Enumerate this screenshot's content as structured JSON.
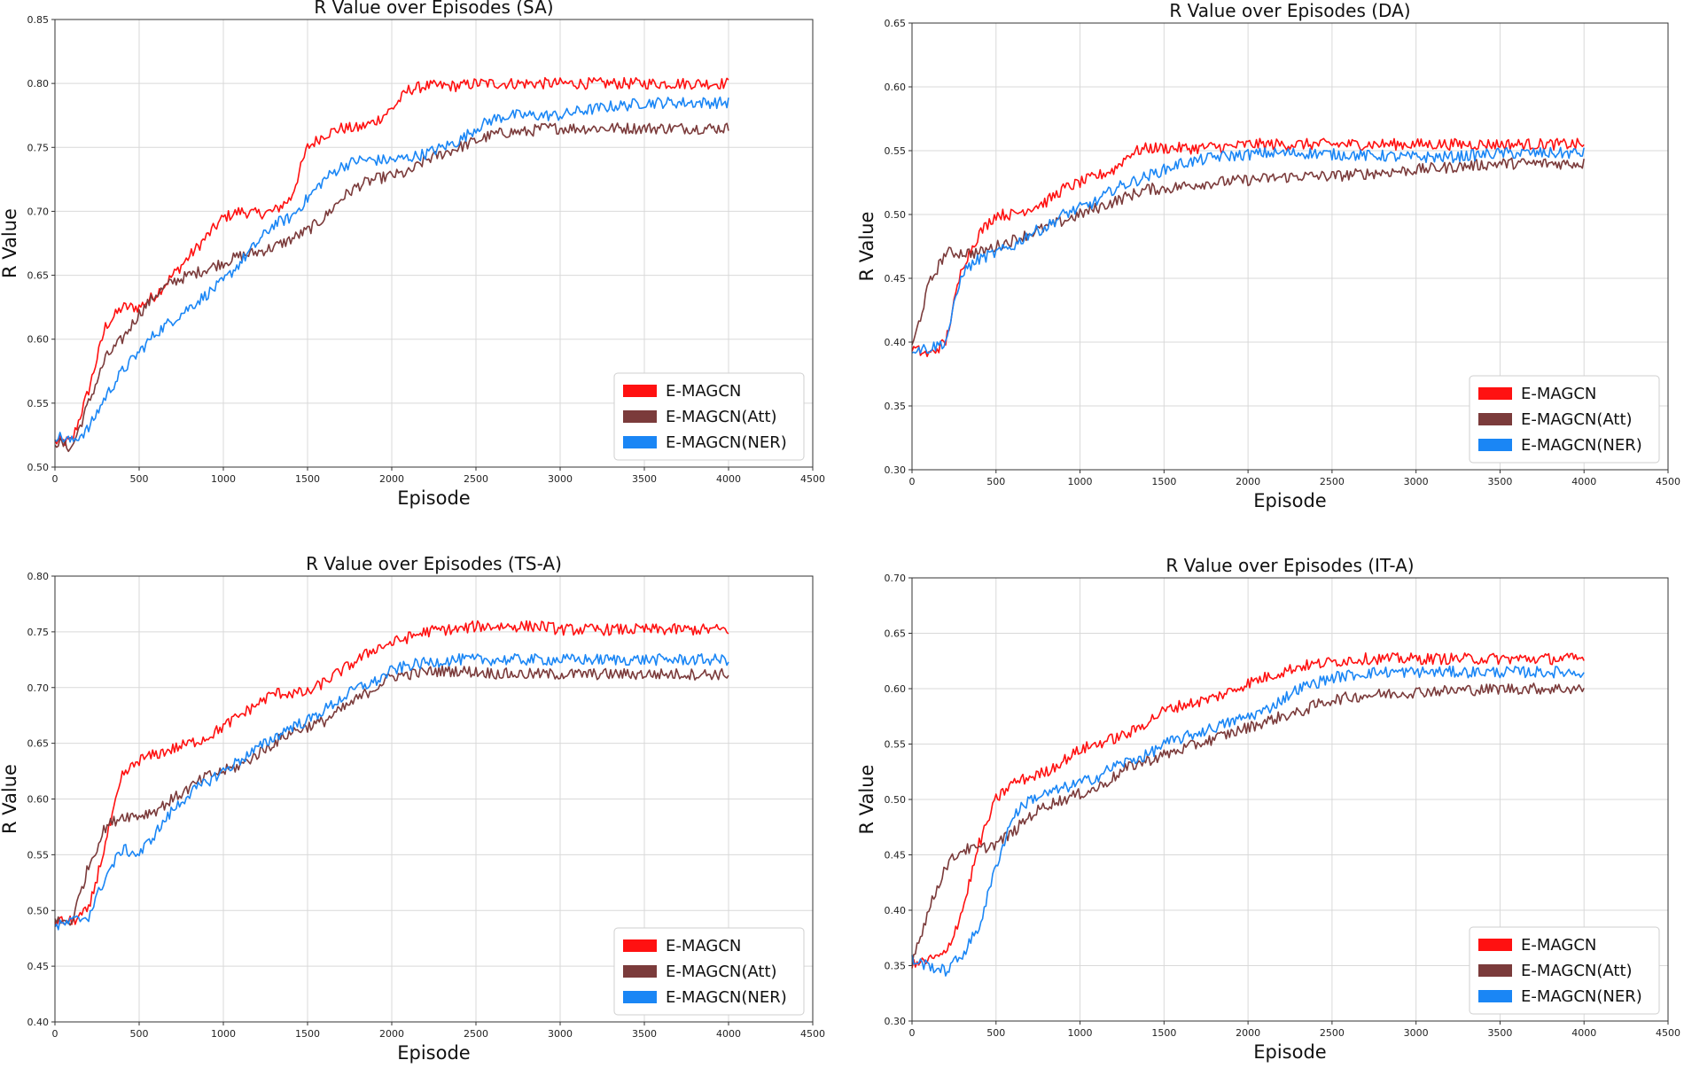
{
  "figure": {
    "xlabel": "Episode",
    "ylabel": "R Value"
  },
  "legend": {
    "entries": [
      {
        "label": "E-MAGCN",
        "color": "#ff1111"
      },
      {
        "label": "E-MAGCN(Att)",
        "color": "#7b3b3b"
      },
      {
        "label": "E-MAGCN(NER)",
        "color": "#1a86f5"
      }
    ],
    "placement": "lower-right"
  },
  "chart_data": [
    {
      "type": "line",
      "title": "R Value over Episodes (SA)",
      "xlabel": "Episode",
      "ylabel": "R Value",
      "xlim": [
        0,
        4500
      ],
      "ylim": [
        0.5,
        0.85
      ],
      "xticks": [
        "0",
        "500",
        "1000",
        "1500",
        "2000",
        "2500",
        "3000",
        "3500",
        "4000",
        "4500"
      ],
      "yticks": [
        "0.50",
        "0.55",
        "0.60",
        "0.65",
        "0.70",
        "0.75",
        "0.80",
        "0.85"
      ],
      "grid": true,
      "legend": "lower-right",
      "x": [
        0,
        100,
        200,
        300,
        400,
        500,
        600,
        700,
        800,
        900,
        1000,
        1100,
        1200,
        1300,
        1400,
        1500,
        1600,
        1700,
        1800,
        1900,
        2000,
        2100,
        2200,
        2300,
        2400,
        2500,
        2600,
        2700,
        2800,
        2900,
        3000,
        3100,
        3200,
        3300,
        3400,
        3500,
        3600,
        3700,
        3800,
        3900,
        4000
      ],
      "series": [
        {
          "name": "E-MAGCN",
          "color": "#ff1111",
          "values": [
            0.52,
            0.52,
            0.56,
            0.61,
            0.625,
            0.625,
            0.635,
            0.65,
            0.665,
            0.68,
            0.695,
            0.7,
            0.698,
            0.7,
            0.71,
            0.75,
            0.76,
            0.765,
            0.765,
            0.77,
            0.78,
            0.795,
            0.798,
            0.798,
            0.798,
            0.8,
            0.8,
            0.8,
            0.8,
            0.8,
            0.8,
            0.8,
            0.8,
            0.8,
            0.8,
            0.8,
            0.8,
            0.8,
            0.8,
            0.8,
            0.8
          ]
        },
        {
          "name": "E-MAGCN(Att)",
          "color": "#7b3b3b",
          "values": [
            0.52,
            0.515,
            0.55,
            0.585,
            0.6,
            0.62,
            0.635,
            0.645,
            0.65,
            0.655,
            0.66,
            0.665,
            0.668,
            0.672,
            0.678,
            0.685,
            0.695,
            0.71,
            0.72,
            0.725,
            0.728,
            0.73,
            0.74,
            0.745,
            0.75,
            0.755,
            0.76,
            0.762,
            0.762,
            0.765,
            0.765,
            0.765,
            0.765,
            0.765,
            0.765,
            0.765,
            0.765,
            0.765,
            0.765,
            0.765,
            0.765
          ]
        },
        {
          "name": "E-MAGCN(NER)",
          "color": "#1a86f5",
          "values": [
            0.525,
            0.52,
            0.53,
            0.555,
            0.575,
            0.59,
            0.605,
            0.615,
            0.625,
            0.635,
            0.645,
            0.66,
            0.675,
            0.69,
            0.695,
            0.71,
            0.725,
            0.735,
            0.74,
            0.74,
            0.74,
            0.742,
            0.745,
            0.75,
            0.755,
            0.765,
            0.772,
            0.775,
            0.775,
            0.775,
            0.775,
            0.778,
            0.78,
            0.782,
            0.783,
            0.785,
            0.785,
            0.785,
            0.785,
            0.785,
            0.785
          ]
        }
      ]
    },
    {
      "type": "line",
      "title": "R Value over Episodes (DA)",
      "xlabel": "Episode",
      "ylabel": "R Value",
      "xlim": [
        0,
        4500
      ],
      "ylim": [
        0.3,
        0.65
      ],
      "xticks": [
        "0",
        "500",
        "1000",
        "1500",
        "2000",
        "2500",
        "3000",
        "3500",
        "4000",
        "4500"
      ],
      "yticks": [
        "0.30",
        "0.35",
        "0.40",
        "0.45",
        "0.50",
        "0.55",
        "0.60",
        "0.65"
      ],
      "grid": true,
      "legend": "lower-right",
      "x": [
        0,
        100,
        200,
        300,
        400,
        500,
        600,
        700,
        800,
        900,
        1000,
        1100,
        1200,
        1300,
        1400,
        1500,
        1600,
        1700,
        1800,
        1900,
        2000,
        2100,
        2200,
        2300,
        2400,
        2500,
        2600,
        2700,
        2800,
        2900,
        3000,
        3100,
        3200,
        3300,
        3400,
        3500,
        3600,
        3700,
        3800,
        3900,
        4000
      ],
      "series": [
        {
          "name": "E-MAGCN",
          "color": "#ff1111",
          "values": [
            0.395,
            0.39,
            0.4,
            0.46,
            0.485,
            0.5,
            0.5,
            0.505,
            0.51,
            0.52,
            0.525,
            0.53,
            0.535,
            0.548,
            0.552,
            0.552,
            0.552,
            0.552,
            0.553,
            0.553,
            0.555,
            0.555,
            0.555,
            0.555,
            0.555,
            0.555,
            0.555,
            0.555,
            0.555,
            0.555,
            0.555,
            0.555,
            0.555,
            0.555,
            0.555,
            0.555,
            0.555,
            0.555,
            0.555,
            0.555,
            0.555
          ]
        },
        {
          "name": "E-MAGCN(Att)",
          "color": "#7b3b3b",
          "values": [
            0.395,
            0.445,
            0.47,
            0.47,
            0.47,
            0.475,
            0.48,
            0.485,
            0.49,
            0.495,
            0.5,
            0.505,
            0.51,
            0.515,
            0.52,
            0.52,
            0.522,
            0.524,
            0.525,
            0.526,
            0.527,
            0.528,
            0.529,
            0.53,
            0.53,
            0.53,
            0.531,
            0.532,
            0.533,
            0.534,
            0.535,
            0.536,
            0.537,
            0.538,
            0.539,
            0.54,
            0.54,
            0.54,
            0.54,
            0.54,
            0.54
          ]
        },
        {
          "name": "E-MAGCN(NER)",
          "color": "#1a86f5",
          "values": [
            0.395,
            0.395,
            0.4,
            0.455,
            0.465,
            0.47,
            0.475,
            0.485,
            0.49,
            0.5,
            0.505,
            0.51,
            0.52,
            0.525,
            0.53,
            0.535,
            0.54,
            0.542,
            0.545,
            0.546,
            0.547,
            0.548,
            0.548,
            0.548,
            0.548,
            0.547,
            0.547,
            0.546,
            0.546,
            0.545,
            0.545,
            0.545,
            0.545,
            0.546,
            0.547,
            0.548,
            0.548,
            0.548,
            0.548,
            0.548,
            0.548
          ]
        }
      ]
    },
    {
      "type": "line",
      "title": "R Value over Episodes (TS-A)",
      "xlabel": "Episode",
      "ylabel": "R Value",
      "xlim": [
        0,
        4500
      ],
      "ylim": [
        0.4,
        0.8
      ],
      "xticks": [
        "0",
        "500",
        "1000",
        "1500",
        "2000",
        "2500",
        "3000",
        "3500",
        "4000",
        "4500"
      ],
      "yticks": [
        "0.40",
        "0.45",
        "0.50",
        "0.55",
        "0.60",
        "0.65",
        "0.70",
        "0.75",
        "0.80"
      ],
      "grid": true,
      "legend": "lower-right",
      "x": [
        0,
        100,
        200,
        300,
        400,
        500,
        600,
        700,
        800,
        900,
        1000,
        1100,
        1200,
        1300,
        1400,
        1500,
        1600,
        1700,
        1800,
        1900,
        2000,
        2100,
        2200,
        2300,
        2400,
        2500,
        2600,
        2700,
        2800,
        2900,
        3000,
        3100,
        3200,
        3300,
        3400,
        3500,
        3600,
        3700,
        3800,
        3900,
        4000
      ],
      "series": [
        {
          "name": "E-MAGCN",
          "color": "#ff1111",
          "values": [
            0.49,
            0.49,
            0.5,
            0.56,
            0.62,
            0.635,
            0.64,
            0.645,
            0.65,
            0.655,
            0.665,
            0.675,
            0.685,
            0.695,
            0.695,
            0.695,
            0.705,
            0.715,
            0.725,
            0.735,
            0.74,
            0.745,
            0.75,
            0.752,
            0.752,
            0.755,
            0.755,
            0.755,
            0.755,
            0.755,
            0.752,
            0.752,
            0.752,
            0.752,
            0.752,
            0.752,
            0.752,
            0.752,
            0.752,
            0.752,
            0.752
          ]
        },
        {
          "name": "E-MAGCN(Att)",
          "color": "#7b3b3b",
          "values": [
            0.49,
            0.49,
            0.54,
            0.575,
            0.585,
            0.585,
            0.59,
            0.6,
            0.61,
            0.62,
            0.625,
            0.63,
            0.64,
            0.65,
            0.66,
            0.665,
            0.67,
            0.68,
            0.69,
            0.7,
            0.71,
            0.712,
            0.714,
            0.715,
            0.715,
            0.714,
            0.713,
            0.712,
            0.712,
            0.712,
            0.712,
            0.712,
            0.712,
            0.712,
            0.712,
            0.712,
            0.712,
            0.712,
            0.712,
            0.712,
            0.712
          ]
        },
        {
          "name": "E-MAGCN(NER)",
          "color": "#1a86f5",
          "values": [
            0.485,
            0.49,
            0.495,
            0.53,
            0.555,
            0.55,
            0.57,
            0.59,
            0.605,
            0.615,
            0.625,
            0.635,
            0.645,
            0.655,
            0.665,
            0.67,
            0.68,
            0.69,
            0.7,
            0.705,
            0.715,
            0.72,
            0.722,
            0.724,
            0.725,
            0.725,
            0.725,
            0.725,
            0.725,
            0.725,
            0.725,
            0.725,
            0.725,
            0.725,
            0.725,
            0.725,
            0.725,
            0.725,
            0.725,
            0.725,
            0.725
          ]
        }
      ]
    },
    {
      "type": "line",
      "title": "R Value over Episodes (IT-A)",
      "xlabel": "Episode",
      "ylabel": "R Value",
      "xlim": [
        0,
        4500
      ],
      "ylim": [
        0.3,
        0.7
      ],
      "xticks": [
        "0",
        "500",
        "1000",
        "1500",
        "2000",
        "2500",
        "3000",
        "3500",
        "4000",
        "4500"
      ],
      "yticks": [
        "0.30",
        "0.35",
        "0.40",
        "0.45",
        "0.50",
        "0.55",
        "0.60",
        "0.65",
        "0.70"
      ],
      "grid": true,
      "legend": "lower-right",
      "x": [
        0,
        100,
        200,
        300,
        400,
        500,
        600,
        700,
        800,
        900,
        1000,
        1100,
        1200,
        1300,
        1400,
        1500,
        1600,
        1700,
        1800,
        1900,
        2000,
        2100,
        2200,
        2300,
        2400,
        2500,
        2600,
        2700,
        2800,
        2900,
        3000,
        3100,
        3200,
        3300,
        3400,
        3500,
        3600,
        3700,
        3800,
        3900,
        4000
      ],
      "series": [
        {
          "name": "E-MAGCN",
          "color": "#ff1111",
          "values": [
            0.35,
            0.355,
            0.36,
            0.4,
            0.46,
            0.5,
            0.515,
            0.52,
            0.525,
            0.535,
            0.545,
            0.55,
            0.555,
            0.56,
            0.57,
            0.58,
            0.585,
            0.588,
            0.592,
            0.598,
            0.605,
            0.61,
            0.615,
            0.62,
            0.622,
            0.624,
            0.626,
            0.627,
            0.627,
            0.627,
            0.627,
            0.627,
            0.627,
            0.627,
            0.627,
            0.627,
            0.627,
            0.627,
            0.627,
            0.627,
            0.627
          ]
        },
        {
          "name": "E-MAGCN(Att)",
          "color": "#7b3b3b",
          "values": [
            0.355,
            0.4,
            0.44,
            0.455,
            0.455,
            0.46,
            0.47,
            0.485,
            0.495,
            0.5,
            0.505,
            0.51,
            0.52,
            0.53,
            0.535,
            0.54,
            0.545,
            0.55,
            0.555,
            0.56,
            0.565,
            0.57,
            0.575,
            0.578,
            0.585,
            0.59,
            0.592,
            0.594,
            0.595,
            0.596,
            0.597,
            0.598,
            0.598,
            0.599,
            0.599,
            0.6,
            0.6,
            0.6,
            0.6,
            0.6,
            0.6
          ]
        },
        {
          "name": "E-MAGCN(NER)",
          "color": "#1a86f5",
          "values": [
            0.355,
            0.35,
            0.345,
            0.36,
            0.385,
            0.44,
            0.485,
            0.5,
            0.505,
            0.51,
            0.515,
            0.52,
            0.53,
            0.535,
            0.54,
            0.55,
            0.555,
            0.56,
            0.565,
            0.57,
            0.575,
            0.58,
            0.59,
            0.6,
            0.605,
            0.61,
            0.612,
            0.614,
            0.615,
            0.615,
            0.615,
            0.615,
            0.615,
            0.615,
            0.615,
            0.615,
            0.615,
            0.615,
            0.615,
            0.615,
            0.615
          ]
        }
      ]
    }
  ]
}
